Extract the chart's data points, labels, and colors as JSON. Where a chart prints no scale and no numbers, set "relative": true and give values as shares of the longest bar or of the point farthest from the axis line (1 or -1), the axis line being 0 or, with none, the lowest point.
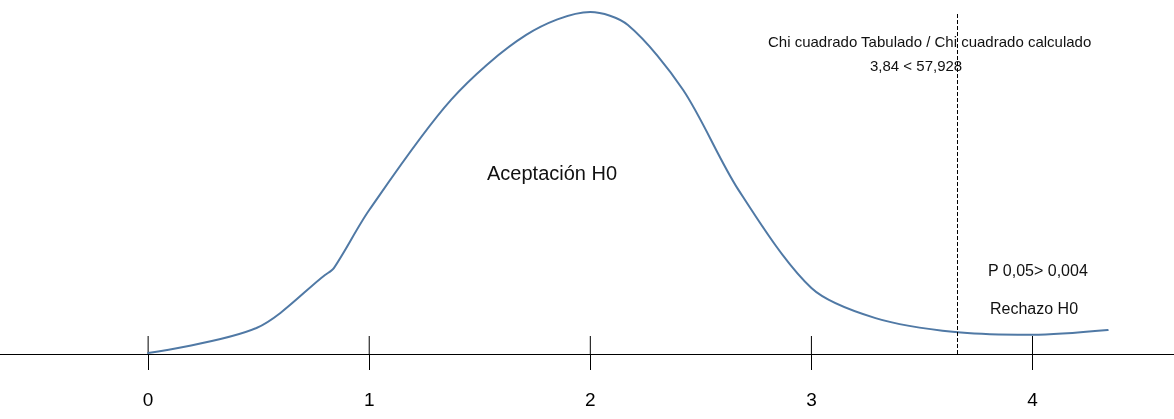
{
  "chart_data": {
    "type": "line",
    "relative": true,
    "x": [
      0,
      0.49,
      0.8,
      0.84,
      1,
      1.37,
      1.71,
      2,
      2.17,
      2.42,
      2.67,
      3,
      3.29,
      3.65,
      4,
      4.34
    ],
    "series": [
      {
        "color": "#5079a5",
        "values": [
          0.003,
          0.076,
          0.231,
          0.251,
          0.421,
          0.743,
          0.933,
          1,
          0.962,
          0.772,
          0.48,
          0.193,
          0.105,
          0.064,
          0.056,
          0.07
        ]
      }
    ],
    "xlim": [
      -0.67,
      4.64
    ],
    "xticks": [
      0,
      1,
      2,
      3,
      4
    ],
    "ref_lines": [
      {
        "axis": "x",
        "value": 3.66,
        "line_style": "dashed",
        "color": "#000000"
      }
    ],
    "annotations": [
      "Aceptación H0",
      "P 0,05> 0,004",
      "Rechazo H0",
      "Chi cuadrado Tabulado / Chi cuadrado calculado",
      "3,84 < 57,928"
    ],
    "grid": false,
    "marker": "none",
    "line_style": "solid"
  }
}
